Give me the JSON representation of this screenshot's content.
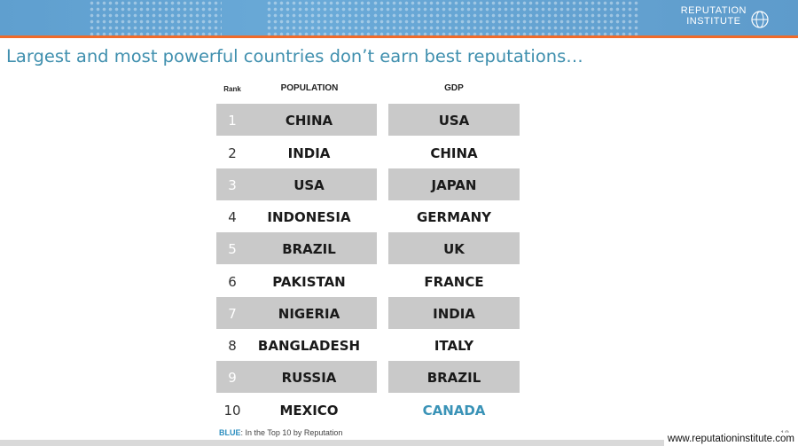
{
  "title": "Largest and most powerful countries don’t earn best reputations…",
  "logo": {
    "line1": "REPUTATION",
    "line2": "INSTITUTE"
  },
  "headers": {
    "rank": "Rank",
    "population": "POPULATION",
    "gdp": "GDP"
  },
  "rows": [
    {
      "rank": "1",
      "population": "CHINA",
      "gdp": "USA"
    },
    {
      "rank": "2",
      "population": "INDIA",
      "gdp": "CHINA"
    },
    {
      "rank": "3",
      "population": "USA",
      "gdp": "JAPAN"
    },
    {
      "rank": "4",
      "population": "INDONESIA",
      "gdp": "GERMANY"
    },
    {
      "rank": "5",
      "population": "BRAZIL",
      "gdp": "UK"
    },
    {
      "rank": "6",
      "population": "PAKISTAN",
      "gdp": "FRANCE"
    },
    {
      "rank": "7",
      "population": "NIGERIA",
      "gdp": "INDIA"
    },
    {
      "rank": "8",
      "population": "BANGLADESH",
      "gdp": "ITALY"
    },
    {
      "rank": "9",
      "population": "RUSSIA",
      "gdp": "BRAZIL"
    },
    {
      "rank": "10",
      "population": "MEXICO",
      "gdp": "CANADA"
    }
  ],
  "highlight_color": "#3a93b7",
  "footnote": {
    "key": "BLUE",
    "text": ": In the Top 10 by Reputation"
  },
  "page_number": "18",
  "url": "www.reputationinstitute.com"
}
